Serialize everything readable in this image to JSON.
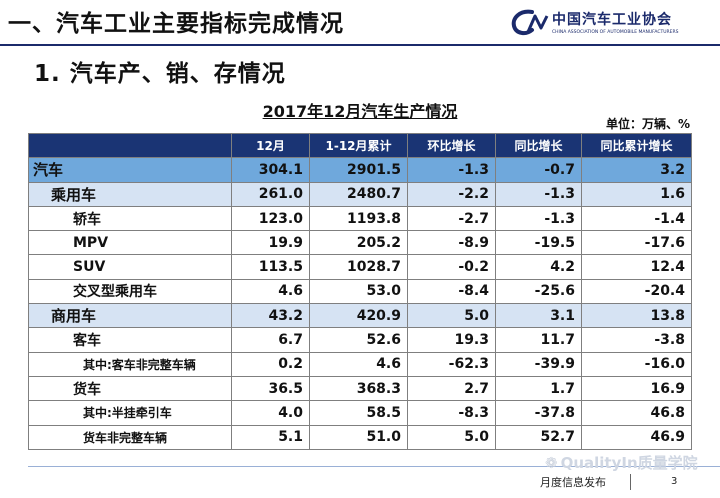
{
  "header": {
    "title": "一、汽车工业主要指标完成情况",
    "logo_name": "中国汽车工业协会",
    "logo_sub": "CHINA ASSOCIATION OF AUTOMOBILE MANUFACTURERS",
    "logo_icon": "caam-logo-icon"
  },
  "section_title": "1. 汽车产、销、存情况",
  "table": {
    "title": "2017年12月汽车生产情况",
    "unit": "单位：万辆、%",
    "columns": [
      "",
      "12月",
      "1-12月累计",
      "环比增长",
      "同比增长",
      "同比累计增长"
    ],
    "rows": [
      {
        "name": "汽车",
        "level": 0,
        "values": [
          "304.1",
          "2901.5",
          "-1.3",
          "-0.7",
          "3.2"
        ]
      },
      {
        "name": "乘用车",
        "level": 1,
        "values": [
          "261.0",
          "2480.7",
          "-2.2",
          "-1.3",
          "1.6"
        ]
      },
      {
        "name": "轿车",
        "level": 2,
        "values": [
          "123.0",
          "1193.8",
          "-2.7",
          "-1.3",
          "-1.4"
        ]
      },
      {
        "name": "MPV",
        "level": 2,
        "values": [
          "19.9",
          "205.2",
          "-8.9",
          "-19.5",
          "-17.6"
        ]
      },
      {
        "name": "SUV",
        "level": 2,
        "values": [
          "113.5",
          "1028.7",
          "-0.2",
          "4.2",
          "12.4"
        ]
      },
      {
        "name": "交叉型乘用车",
        "level": 2,
        "values": [
          "4.6",
          "53.0",
          "-8.4",
          "-25.6",
          "-20.4"
        ]
      },
      {
        "name": "商用车",
        "level": 1,
        "values": [
          "43.2",
          "420.9",
          "5.0",
          "3.1",
          "13.8"
        ]
      },
      {
        "name": "客车",
        "level": 2,
        "values": [
          "6.7",
          "52.6",
          "19.3",
          "11.7",
          "-3.8"
        ]
      },
      {
        "name": "其中:客车非完整车辆",
        "level": 3,
        "values": [
          "0.2",
          "4.6",
          "-62.3",
          "-39.9",
          "-16.0"
        ]
      },
      {
        "name": "货车",
        "level": 2,
        "values": [
          "36.5",
          "368.3",
          "2.7",
          "1.7",
          "16.9"
        ]
      },
      {
        "name": "其中:半挂牵引车",
        "level": 3,
        "values": [
          "4.0",
          "58.5",
          "-8.3",
          "-37.8",
          "46.8"
        ]
      },
      {
        "name": "货车非完整车辆",
        "level": 3,
        "values": [
          "5.1",
          "51.0",
          "5.0",
          "52.7",
          "46.9"
        ]
      }
    ]
  },
  "watermark": {
    "text": "QualityIn质量学院",
    "icon": "wechat-icon"
  },
  "footer": {
    "text": "月度信息发布",
    "page": "3"
  },
  "colors": {
    "navy": "#1a3474",
    "total_row": "#6fa8dc",
    "sub_row": "#d6e3f3"
  }
}
